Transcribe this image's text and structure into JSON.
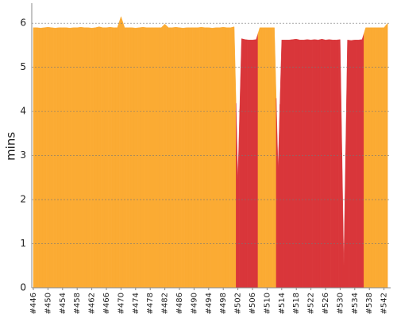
{
  "chart_data": {
    "type": "area",
    "y_label": "mins",
    "categories": [
      "#446",
      null,
      null,
      null,
      "#450",
      null,
      null,
      null,
      "#454",
      null,
      null,
      null,
      "#458",
      null,
      null,
      null,
      "#462",
      null,
      null,
      null,
      "#466",
      null,
      null,
      null,
      "#470",
      null,
      null,
      null,
      "#474",
      null,
      null,
      null,
      "#478",
      null,
      null,
      null,
      "#482",
      null,
      null,
      null,
      "#486",
      null,
      null,
      null,
      "#490",
      null,
      null,
      null,
      "#494",
      null,
      null,
      null,
      "#498",
      null,
      null,
      null,
      "#502",
      null,
      null,
      null,
      "#506",
      null,
      null,
      null,
      "#510",
      null,
      null,
      null,
      "#514",
      null,
      null,
      null,
      "#518",
      null,
      null,
      null,
      "#522",
      null,
      null,
      null,
      "#526",
      null,
      null,
      null,
      "#530",
      null,
      null,
      null,
      "#534",
      null,
      null,
      null,
      "#538",
      null,
      null,
      null,
      "#542",
      null
    ],
    "values": [
      5.9,
      5.9,
      5.89,
      5.9,
      5.91,
      5.9,
      5.89,
      5.9,
      5.9,
      5.9,
      5.89,
      5.9,
      5.9,
      5.91,
      5.9,
      5.9,
      5.89,
      5.9,
      5.92,
      5.9,
      5.9,
      5.91,
      5.9,
      5.9,
      6.15,
      5.9,
      5.9,
      5.9,
      5.89,
      5.9,
      5.91,
      5.9,
      5.9,
      5.9,
      5.9,
      5.9,
      5.98,
      5.9,
      5.9,
      5.91,
      5.9,
      5.89,
      5.9,
      5.9,
      5.9,
      5.9,
      5.91,
      5.9,
      5.9,
      5.89,
      5.9,
      5.9,
      5.91,
      5.9,
      5.9,
      5.92,
      2.45,
      5.65,
      5.63,
      5.62,
      5.62,
      5.63,
      5.9,
      5.9,
      5.9,
      5.9,
      5.9,
      2.7,
      5.62,
      5.62,
      5.62,
      5.63,
      5.64,
      5.62,
      5.62,
      5.63,
      5.62,
      5.63,
      5.62,
      5.64,
      5.62,
      5.63,
      5.62,
      5.62,
      5.63,
      0.5,
      5.62,
      5.61,
      5.62,
      5.62,
      5.63,
      5.9,
      5.9,
      5.9,
      5.9,
      5.9,
      5.9,
      6.0
    ],
    "colors": [
      "#fbab33",
      "#fbab33",
      "#fbab33",
      "#fbab33",
      "#fbab33",
      "#fbab33",
      "#fbab33",
      "#fbab33",
      "#fbab33",
      "#fbab33",
      "#fbab33",
      "#fbab33",
      "#fbab33",
      "#fbab33",
      "#fbab33",
      "#fbab33",
      "#fbab33",
      "#fbab33",
      "#fbab33",
      "#fbab33",
      "#fbab33",
      "#fbab33",
      "#fbab33",
      "#fbab33",
      "#fbab33",
      "#fbab33",
      "#fbab33",
      "#fbab33",
      "#fbab33",
      "#fbab33",
      "#fbab33",
      "#fbab33",
      "#fbab33",
      "#fbab33",
      "#fbab33",
      "#fbab33",
      "#fbab33",
      "#fbab33",
      "#fbab33",
      "#fbab33",
      "#fbab33",
      "#fbab33",
      "#fbab33",
      "#fbab33",
      "#fbab33",
      "#fbab33",
      "#fbab33",
      "#fbab33",
      "#fbab33",
      "#fbab33",
      "#fbab33",
      "#fbab33",
      "#fbab33",
      "#fbab33",
      "#fbab33",
      "#fbab33",
      "#d9363a",
      "#d9363a",
      "#d9363a",
      "#d9363a",
      "#d9363a",
      "#d9363a",
      "#fbab33",
      "#fbab33",
      "#fbab33",
      "#fbab33",
      "#fbab33",
      "#d9363a",
      "#d9363a",
      "#d9363a",
      "#d9363a",
      "#d9363a",
      "#d9363a",
      "#d9363a",
      "#d9363a",
      "#d9363a",
      "#d9363a",
      "#d9363a",
      "#d9363a",
      "#d9363a",
      "#d9363a",
      "#d9363a",
      "#d9363a",
      "#d9363a",
      "#d9363a",
      "#d9363a",
      "#d9363a",
      "#d9363a",
      "#d9363a",
      "#d9363a",
      "#d9363a",
      "#fbab33",
      "#fbab33",
      "#fbab33",
      "#fbab33",
      "#fbab33",
      "#fbab33",
      "#fbab33"
    ],
    "ylim": [
      0,
      6.4
    ],
    "yticks": [
      0,
      1,
      2,
      3,
      4,
      5,
      6
    ],
    "grid": true
  }
}
